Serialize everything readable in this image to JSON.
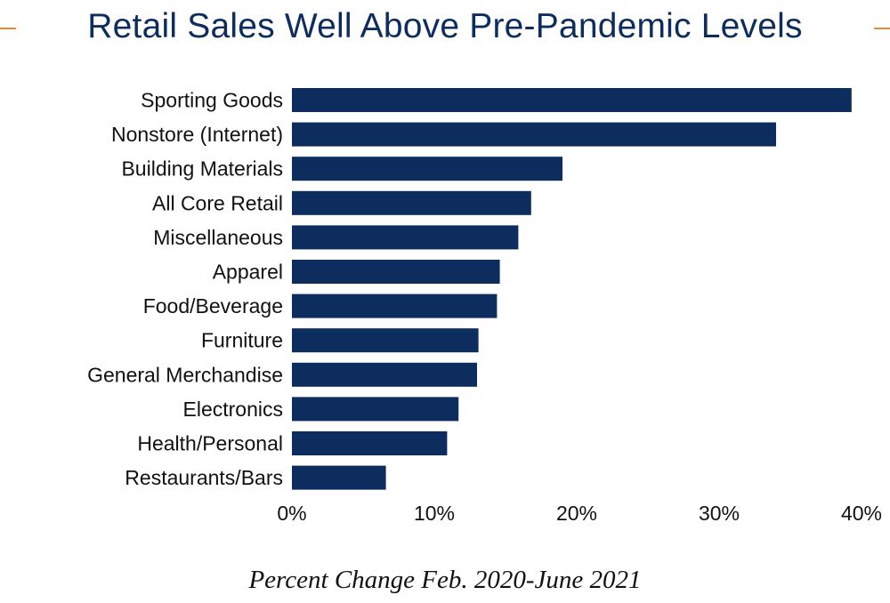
{
  "accent_color": "#e8893a",
  "bar_color": "#0d2d5e",
  "title_color": "#0d2d5e",
  "chart_data": {
    "type": "bar",
    "orientation": "horizontal",
    "title": "Retail Sales Well Above Pre-Pandemic Levels",
    "xlabel": "Percent Change Feb. 2020-June 2021",
    "ylabel": "",
    "categories": [
      "Sporting Goods",
      "Nonstore (Internet)",
      "Building Materials",
      "All Core Retail",
      "Miscellaneous",
      "Apparel",
      "Food/Beverage",
      "Furniture",
      "General Merchandise",
      "Electronics",
      "Health/Personal",
      "Restaurants/Bars"
    ],
    "values": [
      39.3,
      34.0,
      19.0,
      16.8,
      15.9,
      14.6,
      14.4,
      13.1,
      13.0,
      11.7,
      10.9,
      6.6
    ],
    "xlim": [
      0,
      40
    ],
    "ticks": [
      0,
      10,
      20,
      30,
      40
    ],
    "tick_labels": [
      "0%",
      "10%",
      "20%",
      "30%",
      "40%"
    ],
    "grid": false
  }
}
